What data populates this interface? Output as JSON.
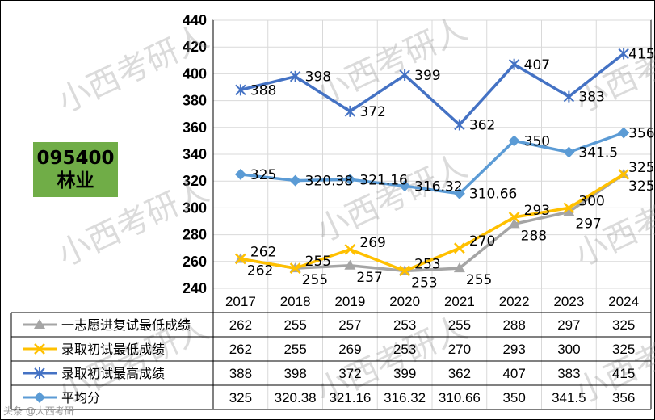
{
  "badge": {
    "code": "095400",
    "name": "林业"
  },
  "footer_text": "头条 @大西考研",
  "watermark": "小西考研人",
  "chart_data": {
    "type": "line",
    "title": "",
    "xlabel": "",
    "ylabel": "",
    "ylim": [
      240,
      440
    ],
    "yticks": [
      240,
      260,
      280,
      300,
      320,
      340,
      360,
      380,
      400,
      420,
      440
    ],
    "grid": true,
    "legend": "data-table-below",
    "categories": [
      "2017",
      "2018",
      "2019",
      "2020",
      "2021",
      "2022",
      "2023",
      "2024"
    ],
    "series": [
      {
        "name": "一志愿进复试最低成绩",
        "color": "#a5a5a5",
        "marker": "triangle",
        "values": [
          262,
          255,
          257,
          253,
          255,
          288,
          297,
          325
        ],
        "labels": [
          "262",
          "255",
          "257",
          "253",
          "255",
          "288",
          "297",
          "325"
        ]
      },
      {
        "name": "录取初试最低成绩",
        "color": "#ffc000",
        "marker": "x",
        "values": [
          262,
          255,
          269,
          253,
          270,
          293,
          300,
          325
        ],
        "labels": [
          "262",
          "255",
          "269",
          "253",
          "270",
          "293",
          "300",
          "325"
        ]
      },
      {
        "name": "录取初试最高成绩",
        "color": "#4472c4",
        "marker": "star",
        "values": [
          388,
          398,
          372,
          399,
          362,
          407,
          383,
          415
        ],
        "labels": [
          "388",
          "398",
          "372",
          "399",
          "362",
          "407",
          "383",
          "415"
        ]
      },
      {
        "name": "平均分",
        "color": "#5b9bd5",
        "marker": "diamond",
        "values": [
          325,
          320.38,
          321.16,
          316.32,
          310.66,
          350,
          341.5,
          356
        ],
        "labels": [
          "325",
          "320.38",
          "321.16",
          "316.32",
          "310.66",
          "350",
          "341.5",
          "356"
        ]
      }
    ]
  }
}
